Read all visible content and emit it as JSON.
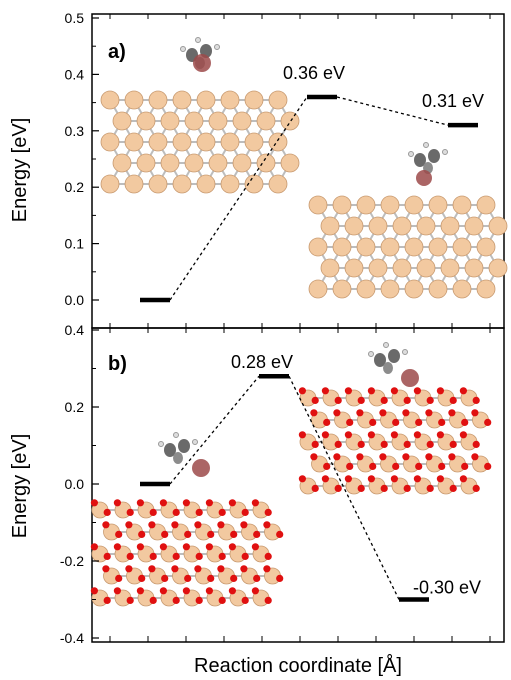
{
  "figure": {
    "xlabel": "Reaction coordinate [Å]"
  },
  "chart_data": [
    {
      "type": "line",
      "panel": "a)",
      "title": "",
      "xlabel": "Reaction coordinate [Å]",
      "ylabel": "Energy [eV]",
      "ylim": [
        0.0,
        0.5
      ],
      "yticks": [
        "0.0",
        "0.1",
        "0.2",
        "0.3",
        "0.4",
        "0.5"
      ],
      "grid": false,
      "levels": [
        {
          "x": 1,
          "y": 0.0,
          "label": ""
        },
        {
          "x": 2,
          "y": 0.36,
          "label": "0.36 eV"
        },
        {
          "x": 3,
          "y": 0.31,
          "label": "0.31 eV"
        }
      ]
    },
    {
      "type": "line",
      "panel": "b)",
      "title": "",
      "xlabel": "Reaction coordinate [Å]",
      "ylabel": "Energy [eV]",
      "ylim": [
        -0.4,
        0.4
      ],
      "yticks": [
        "-0.4",
        "-0.2",
        "0.0",
        "0.2",
        "0.4"
      ],
      "grid": false,
      "levels": [
        {
          "x": 1,
          "y": 0.0,
          "label": ""
        },
        {
          "x": 2,
          "y": 0.28,
          "label": "0.28 eV"
        },
        {
          "x": 3,
          "y": -0.3,
          "label": "-0.30 eV"
        }
      ]
    }
  ],
  "colors": {
    "axis": "#000000",
    "level": "#000000",
    "connector": "#000000",
    "atom_surface": "#f2c9a0",
    "atom_surface_edge": "#c89a70",
    "atom_oxygen": "#e01010",
    "atom_h": "#ffffff",
    "atom_carbon": "#6a6a6a",
    "atom_adsorbate": "#9c4a4a"
  }
}
